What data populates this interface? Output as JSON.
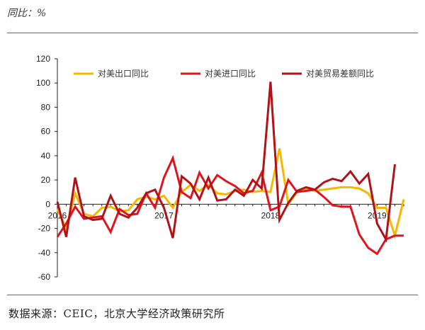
{
  "header": {
    "unit": "同比：%"
  },
  "footer": {
    "source": "数据来源：CEIC，北京大学经济政策研究所"
  },
  "chart_data": {
    "type": "line",
    "title": "",
    "xlabel": "",
    "ylabel": "",
    "ylim": [
      -60,
      120
    ],
    "yticks": [
      -60,
      -40,
      -20,
      0,
      20,
      40,
      60,
      80,
      100,
      120
    ],
    "xtick_labels": [
      {
        "label": "2016",
        "index": 0
      },
      {
        "label": "2017",
        "index": 12
      },
      {
        "label": "2018",
        "index": 24
      },
      {
        "label": "2019",
        "index": 36
      }
    ],
    "x": [
      "2016-01",
      "2016-02",
      "2016-03",
      "2016-04",
      "2016-05",
      "2016-06",
      "2016-07",
      "2016-08",
      "2016-09",
      "2016-10",
      "2016-11",
      "2016-12",
      "2017-01",
      "2017-02",
      "2017-03",
      "2017-04",
      "2017-05",
      "2017-06",
      "2017-07",
      "2017-08",
      "2017-09",
      "2017-10",
      "2017-11",
      "2017-12",
      "2018-01",
      "2018-02",
      "2018-03",
      "2018-04",
      "2018-05",
      "2018-06",
      "2018-07",
      "2018-08",
      "2018-09",
      "2018-10",
      "2018-11",
      "2018-12",
      "2019-01",
      "2019-02",
      "2019-03",
      "2019-04"
    ],
    "legend_position": "top",
    "series": [
      {
        "name": "对美出口同比",
        "color": "#f5b800",
        "values": [
          -4,
          -20,
          9,
          -8,
          -10,
          -3,
          -2,
          -6,
          -5,
          4,
          6,
          4,
          7,
          -3,
          10,
          16,
          11,
          16,
          9,
          8,
          11,
          12,
          10,
          11,
          10,
          46,
          0,
          10,
          12,
          11,
          12,
          13,
          14,
          14,
          13,
          9,
          -3,
          -3,
          -26,
          4
        ]
      },
      {
        "name": "对美进口同比",
        "color": "#e0141e",
        "values": [
          -27,
          -16,
          -2,
          -12,
          -11,
          -10,
          -23,
          -4,
          -9,
          -8,
          9,
          -3,
          22,
          38,
          10,
          5,
          26,
          13,
          24,
          19,
          15,
          9,
          11,
          26,
          -5,
          -2,
          20,
          10,
          11,
          12,
          6,
          -1,
          -2,
          -2,
          -25,
          -36,
          -41,
          -29,
          -26,
          -26
        ]
      },
      {
        "name": "对美贸易差额同比",
        "color": "#b01217",
        "values": [
          2,
          -27,
          22,
          -10,
          -13,
          -12,
          7,
          -8,
          -11,
          -3,
          9,
          12,
          -3,
          -28,
          23,
          17,
          4,
          22,
          3,
          4,
          12,
          7,
          20,
          13,
          101,
          -13,
          1,
          11,
          14,
          12,
          18,
          21,
          19,
          27,
          17,
          25,
          -16,
          -29,
          33,
          null
        ]
      }
    ]
  }
}
